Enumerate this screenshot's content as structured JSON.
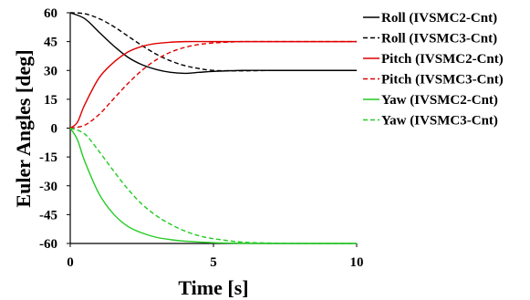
{
  "chart_data": {
    "type": "line",
    "xlabel": "Time [s]",
    "ylabel": "Euler Angles [deg]",
    "xlim": [
      0,
      10
    ],
    "ylim": [
      -60,
      60
    ],
    "xticks": [
      "0",
      "5",
      "10"
    ],
    "yticks": [
      "60",
      "45",
      "30",
      "15",
      "0",
      "-15",
      "-30",
      "-45",
      "-60"
    ],
    "grid": false,
    "legend_position": "right",
    "series": [
      {
        "name": "Roll (IVSMC2-Cnt)",
        "color": "#000000",
        "dash": "solid",
        "x": [
          0,
          0.5,
          1,
          1.5,
          2,
          2.5,
          3,
          3.5,
          4,
          4.5,
          5,
          6,
          7,
          8,
          9,
          10
        ],
        "y": [
          60,
          57,
          50,
          43,
          37,
          33,
          30.5,
          29,
          28.5,
          29,
          29.5,
          30,
          30,
          30,
          30,
          30
        ]
      },
      {
        "name": "Roll (IVSMC3-Cnt)",
        "color": "#000000",
        "dash": "dashed",
        "x": [
          0,
          0.5,
          1,
          1.5,
          2,
          2.5,
          3,
          3.5,
          4,
          4.5,
          5,
          6,
          7,
          8,
          9,
          10
        ],
        "y": [
          60,
          59.5,
          57,
          53,
          48,
          43,
          38.5,
          35,
          32.5,
          31,
          30,
          29.8,
          30,
          30,
          30,
          30
        ]
      },
      {
        "name": "Pitch (IVSMC2-Cnt)",
        "color": "#e00000",
        "dash": "solid",
        "x": [
          0,
          0.25,
          0.5,
          1,
          1.5,
          2,
          2.5,
          3,
          3.5,
          4,
          5,
          6,
          7,
          8,
          9,
          10
        ],
        "y": [
          0,
          3,
          12,
          26,
          34,
          39.5,
          42.5,
          44,
          44.7,
          45,
          45,
          45,
          45,
          45,
          45,
          45
        ]
      },
      {
        "name": "Pitch (IVSMC3-Cnt)",
        "color": "#e00000",
        "dash": "dashed",
        "x": [
          0,
          0.5,
          1,
          1.5,
          2,
          2.5,
          3,
          3.5,
          4,
          4.5,
          5,
          6,
          7,
          8,
          9,
          10
        ],
        "y": [
          0,
          1.5,
          7,
          15,
          23,
          30,
          35.5,
          39.5,
          42,
          43.5,
          44.3,
          45,
          45,
          45,
          45,
          45
        ]
      },
      {
        "name": "Yaw (IVSMC2-Cnt)",
        "color": "#22cc22",
        "dash": "solid",
        "x": [
          0,
          0.25,
          0.5,
          1,
          1.5,
          2,
          2.5,
          3,
          3.5,
          4,
          5,
          6,
          7,
          8,
          9,
          10
        ],
        "y": [
          0,
          -6,
          -17,
          -34,
          -44.5,
          -51,
          -54.5,
          -56.8,
          -58,
          -58.8,
          -59.6,
          -59.9,
          -60,
          -60,
          -60,
          -60
        ]
      },
      {
        "name": "Yaw (IVSMC3-Cnt)",
        "color": "#22cc22",
        "dash": "dashed",
        "x": [
          0,
          0.5,
          1,
          1.5,
          2,
          2.5,
          3,
          3.5,
          4,
          4.5,
          5,
          6,
          7,
          8,
          9,
          10
        ],
        "y": [
          0,
          -3,
          -12,
          -22,
          -31.5,
          -39.5,
          -45.5,
          -50,
          -53.5,
          -56,
          -57.5,
          -59.3,
          -59.8,
          -60,
          -60,
          -60
        ]
      }
    ]
  }
}
